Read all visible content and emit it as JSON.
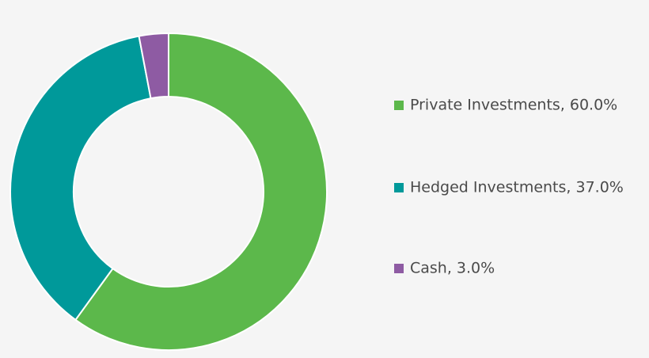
{
  "chart_data": {
    "type": "donut",
    "categories": [
      "Private Investments, 60.0%",
      "Hedged Investments, 37.0%",
      "Cash, 3.0%"
    ],
    "values": [
      60,
      37,
      3
    ],
    "colors": [
      "#5cb84b",
      "#00999a",
      "#8e5ba3"
    ]
  }
}
